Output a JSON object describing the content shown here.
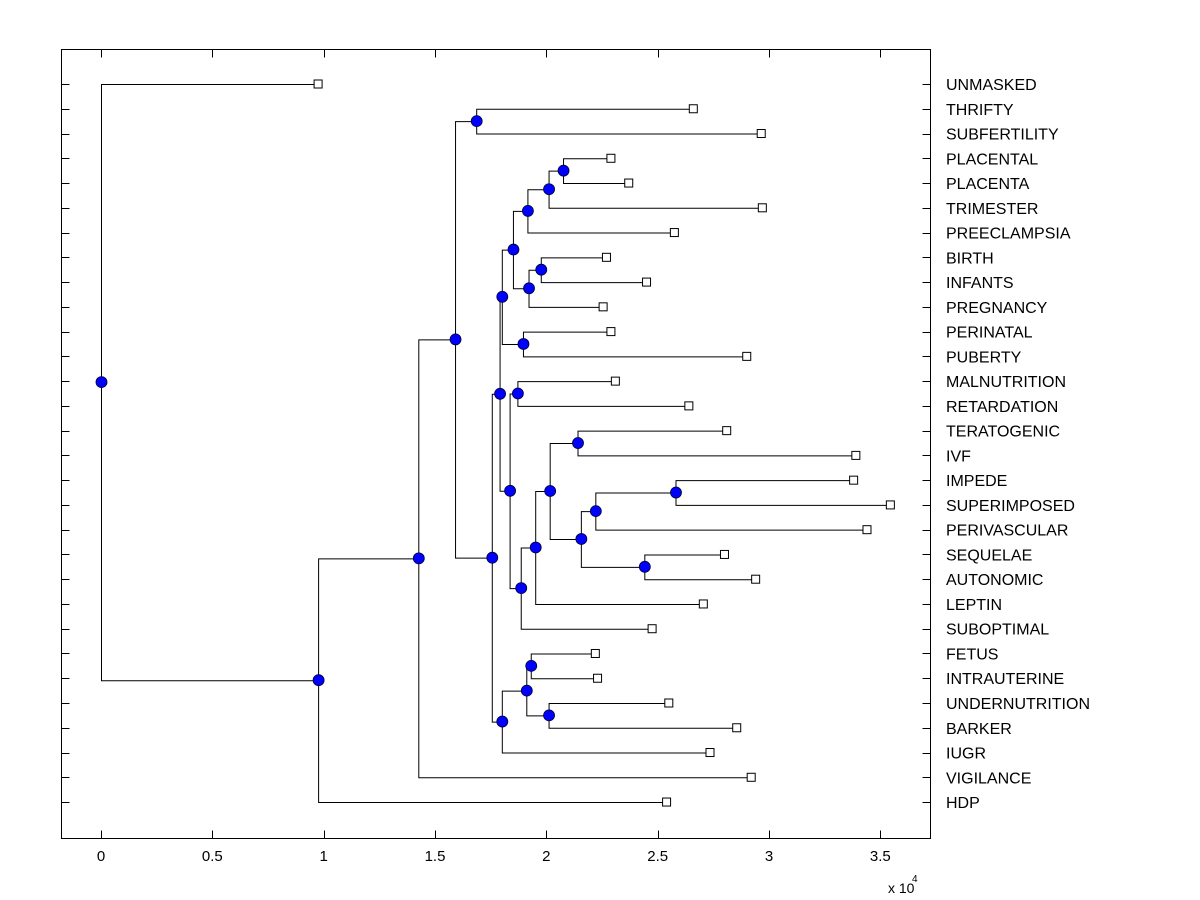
{
  "chart_data": {
    "type": "dendrogram",
    "orientation": "horizontal",
    "title": "",
    "xlabel": "",
    "ylabel": "",
    "x_multiplier_label": "x 10",
    "x_multiplier_exponent": "4",
    "xlim": [
      -0.18,
      3.72
    ],
    "xticks": [
      0,
      0.5,
      1,
      1.5,
      2,
      2.5,
      3,
      3.5
    ],
    "xtick_labels": [
      "0",
      "0.5",
      "1",
      "1.5",
      "2",
      "2.5",
      "3",
      "3.5"
    ],
    "grid": false,
    "node_color": "#0000ff",
    "leaf_marker": "hollow-square",
    "leaves": [
      {
        "label": "UNMASKED",
        "value": 0.975
      },
      {
        "label": "THRIFTY",
        "value": 2.66
      },
      {
        "label": "SUBFERTILITY",
        "value": 2.965
      },
      {
        "label": "PLACENTAL",
        "value": 2.29
      },
      {
        "label": "PLACENTA",
        "value": 2.37
      },
      {
        "label": "TRIMESTER",
        "value": 2.97
      },
      {
        "label": "PREECLAMPSIA",
        "value": 2.575
      },
      {
        "label": "BIRTH",
        "value": 2.27
      },
      {
        "label": "INFANTS",
        "value": 2.45
      },
      {
        "label": "PREGNANCY",
        "value": 2.255
      },
      {
        "label": "PERINATAL",
        "value": 2.29
      },
      {
        "label": "PUBERTY",
        "value": 2.9
      },
      {
        "label": "MALNUTRITION",
        "value": 2.31
      },
      {
        "label": "RETARDATION",
        "value": 2.64
      },
      {
        "label": "TERATOGENIC",
        "value": 2.81
      },
      {
        "label": "IVF",
        "value": 3.39
      },
      {
        "label": "IMPEDE",
        "value": 3.38
      },
      {
        "label": "SUPERIMPOSED",
        "value": 3.545
      },
      {
        "label": "PERIVASCULAR",
        "value": 3.44
      },
      {
        "label": "SEQUELAE",
        "value": 2.8
      },
      {
        "label": "AUTONOMIC",
        "value": 2.94
      },
      {
        "label": "LEPTIN",
        "value": 2.705
      },
      {
        "label": "SUBOPTIMAL",
        "value": 2.475
      },
      {
        "label": "FETUS",
        "value": 2.22
      },
      {
        "label": "INTRAUTERINE",
        "value": 2.23
      },
      {
        "label": "UNDERNUTRITION",
        "value": 2.55
      },
      {
        "label": "BARKER",
        "value": 2.855
      },
      {
        "label": "IUGR",
        "value": 2.735
      },
      {
        "label": "VIGILANCE",
        "value": 2.92
      },
      {
        "label": "HDP",
        "value": 2.54
      }
    ],
    "tree": {
      "value": 0,
      "children": [
        {
          "leaf": 0
        },
        {
          "value": 0.975,
          "children": [
            {
              "value": 1.425,
              "children": [
                {
                  "value": 1.59,
                  "children": [
                    {
                      "value": 1.685,
                      "children": [
                        {
                          "leaf": 1
                        },
                        {
                          "leaf": 2
                        }
                      ]
                    },
                    {
                      "value": 1.755,
                      "children": [
                        {
                          "value": 1.79,
                          "children": [
                            {
                              "value": 1.8,
                              "children": [
                                {
                                  "value": 1.85,
                                  "children": [
                                    {
                                      "value": 1.915,
                                      "children": [
                                        {
                                          "value": 2.01,
                                          "children": [
                                            {
                                              "value": 2.075,
                                              "children": [
                                                {
                                                  "leaf": 3
                                                },
                                                {
                                                  "leaf": 4
                                                }
                                              ]
                                            },
                                            {
                                              "leaf": 5
                                            }
                                          ]
                                        },
                                        {
                                          "leaf": 6
                                        }
                                      ]
                                    },
                                    {
                                      "value": 1.92,
                                      "children": [
                                        {
                                          "value": 1.975,
                                          "children": [
                                            {
                                              "leaf": 7
                                            },
                                            {
                                              "leaf": 8
                                            }
                                          ]
                                        },
                                        {
                                          "leaf": 9
                                        }
                                      ]
                                    }
                                  ]
                                },
                                {
                                  "value": 1.895,
                                  "children": [
                                    {
                                      "leaf": 10
                                    },
                                    {
                                      "leaf": 11
                                    }
                                  ]
                                }
                              ]
                            },
                            {
                              "value": 1.835,
                              "children": [
                                {
                                  "value": 1.87,
                                  "children": [
                                    {
                                      "leaf": 12
                                    },
                                    {
                                      "leaf": 13
                                    }
                                  ]
                                },
                                {
                                  "value": 1.885,
                                  "children": [
                                    {
                                      "value": 1.95,
                                      "children": [
                                        {
                                          "value": 2.015,
                                          "children": [
                                            {
                                              "value": 2.14,
                                              "children": [
                                                {
                                                  "leaf": 14
                                                },
                                                {
                                                  "leaf": 15
                                                }
                                              ]
                                            },
                                            {
                                              "value": 2.155,
                                              "children": [
                                                {
                                                  "value": 2.22,
                                                  "children": [
                                                    {
                                                      "value": 2.58,
                                                      "children": [
                                                        {
                                                          "leaf": 16
                                                        },
                                                        {
                                                          "leaf": 17
                                                        }
                                                      ]
                                                    },
                                                    {
                                                      "leaf": 18
                                                    }
                                                  ]
                                                },
                                                {
                                                  "value": 2.44,
                                                  "children": [
                                                    {
                                                      "leaf": 19
                                                    },
                                                    {
                                                      "leaf": 20
                                                    }
                                                  ]
                                                }
                                              ]
                                            }
                                          ]
                                        },
                                        {
                                          "leaf": 21
                                        }
                                      ]
                                    },
                                    {
                                      "leaf": 22
                                    }
                                  ]
                                }
                              ]
                            }
                          ]
                        },
                        {
                          "value": 1.8,
                          "children": [
                            {
                              "value": 1.91,
                              "children": [
                                {
                                  "value": 1.93,
                                  "children": [
                                    {
                                      "leaf": 23
                                    },
                                    {
                                      "leaf": 24
                                    }
                                  ]
                                },
                                {
                                  "value": 2.01,
                                  "children": [
                                    {
                                      "leaf": 25
                                    },
                                    {
                                      "leaf": 26
                                    }
                                  ]
                                }
                              ]
                            },
                            {
                              "leaf": 27
                            }
                          ]
                        }
                      ]
                    }
                  ]
                },
                {
                  "leaf": 28
                }
              ]
            },
            {
              "leaf": 29
            }
          ]
        }
      ]
    }
  }
}
